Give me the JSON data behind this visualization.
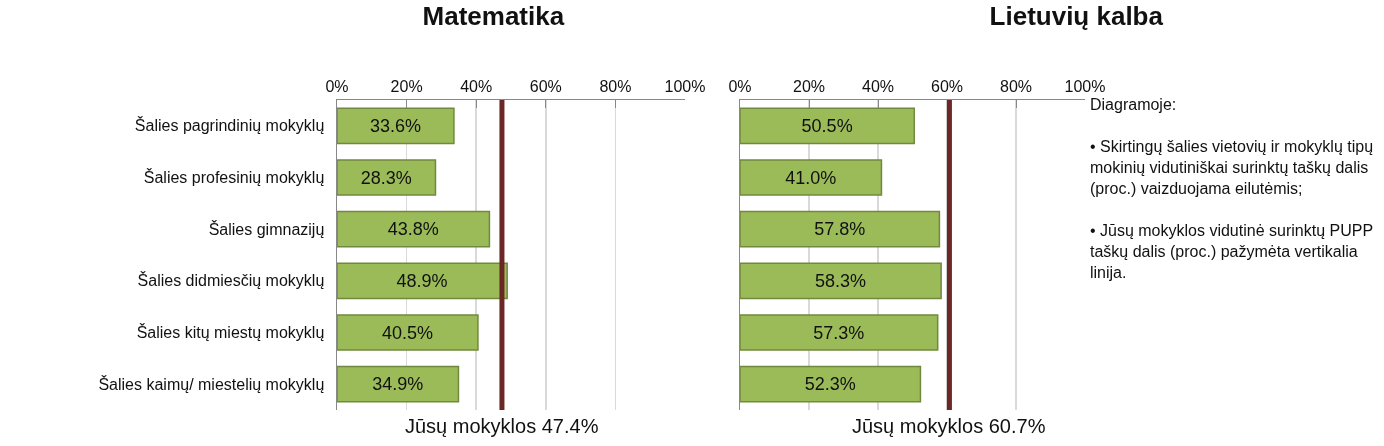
{
  "chart_data": [
    {
      "type": "bar",
      "orientation": "horizontal",
      "title": "Matematika",
      "categories": [
        "Šalies pagrindinių mokyklų",
        "Šalies profesinių mokyklų",
        "Šalies gimnazijų",
        "Šalies didmiesčių mokyklų",
        "Šalies kitų miestų mokyklų",
        "Šalies kaimų/ miestelių mokyklų"
      ],
      "values": [
        33.6,
        28.3,
        43.8,
        48.9,
        40.5,
        34.9
      ],
      "value_labels": [
        "33.6%",
        "28.3%",
        "43.8%",
        "48.9%",
        "40.5%",
        "34.9%"
      ],
      "color": "#9bbb59",
      "xlim": [
        0,
        100
      ],
      "xticks": [
        {
          "value": 0,
          "label": "0%"
        },
        {
          "value": 20,
          "label": "20%"
        },
        {
          "value": 40,
          "label": "40%"
        },
        {
          "value": 60,
          "label": "60%"
        },
        {
          "value": 80,
          "label": "80%"
        },
        {
          "value": 100,
          "label": "100%"
        }
      ],
      "grid": "x",
      "ref_lines": [
        {
          "axis": "x",
          "value": 47.4,
          "label": "Jūsų mokyklos 47.4%",
          "color": "#6b2626"
        }
      ]
    },
    {
      "type": "bar",
      "orientation": "horizontal",
      "title": "Lietuvių kalba",
      "categories": [
        null,
        null,
        null,
        null,
        null,
        null
      ],
      "tick_labels": "x",
      "values": [
        50.5,
        41.0,
        57.8,
        58.3,
        57.3,
        52.3
      ],
      "value_labels": [
        "50.5%",
        "41.0%",
        "57.8%",
        "58.3%",
        "57.3%",
        "52.3%"
      ],
      "color": "#9bbb59",
      "xlim": [
        0,
        100
      ],
      "xticks": [
        {
          "value": 0,
          "label": "0%"
        },
        {
          "value": 20,
          "label": "20%"
        },
        {
          "value": 40,
          "label": "40%"
        },
        {
          "value": 60,
          "label": "60%"
        },
        {
          "value": 80,
          "label": "80%"
        },
        {
          "value": 100,
          "label": "100%"
        }
      ],
      "grid": "x",
      "ref_lines": [
        {
          "axis": "x",
          "value": 60.7,
          "label": "Jūsų mokyklos 60.7%",
          "color": "#6b2626"
        }
      ],
      "annotations": [
        "Diagramoje:",
        "• Skirtingų šalies vietovių ir mokyklų tipų mokinių vidutiniškai surinktų taškų dalis (proc.) vaizduojama eilutėmis;",
        "• Jūsų mokyklos vidutinė surinktų PUPP taškų dalis (proc.) pažymėta vertikalia linija."
      ]
    }
  ]
}
